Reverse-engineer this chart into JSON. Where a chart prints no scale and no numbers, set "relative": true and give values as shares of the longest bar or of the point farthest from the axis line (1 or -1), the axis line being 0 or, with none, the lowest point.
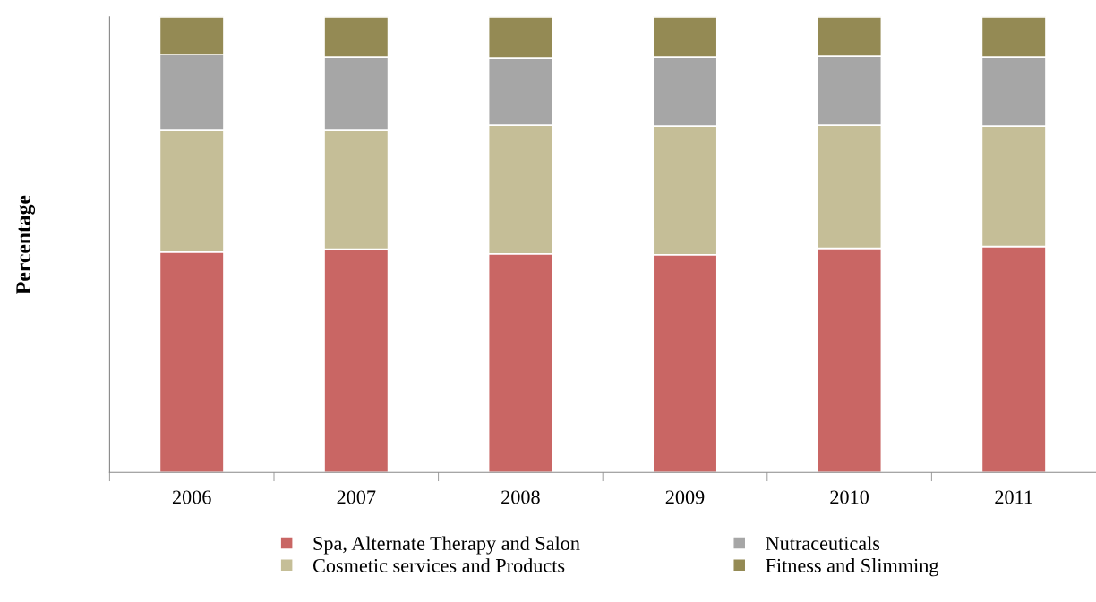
{
  "chart_data": {
    "type": "bar",
    "stacked": true,
    "relative": true,
    "ylabel": "Percentage",
    "categories": [
      "2006",
      "2007",
      "2008",
      "2009",
      "2010",
      "2011"
    ],
    "series": [
      {
        "name": "Spa, Alternate Therapy and Salon",
        "color": "#c96664",
        "values": [
          0.484,
          0.49,
          0.48,
          0.478,
          0.492,
          0.496
        ]
      },
      {
        "name": "Cosmetic services and Products",
        "color": "#c5be97",
        "values": [
          0.268,
          0.262,
          0.282,
          0.282,
          0.27,
          0.264
        ]
      },
      {
        "name": "Nutraceuticals",
        "color": "#a6a6a6",
        "values": [
          0.165,
          0.159,
          0.147,
          0.151,
          0.151,
          0.151
        ]
      },
      {
        "name": "Fitness and Slimming",
        "color": "#948a54",
        "values": [
          0.083,
          0.089,
          0.091,
          0.089,
          0.087,
          0.089
        ]
      }
    ],
    "grid": false,
    "legend": "bottom"
  }
}
